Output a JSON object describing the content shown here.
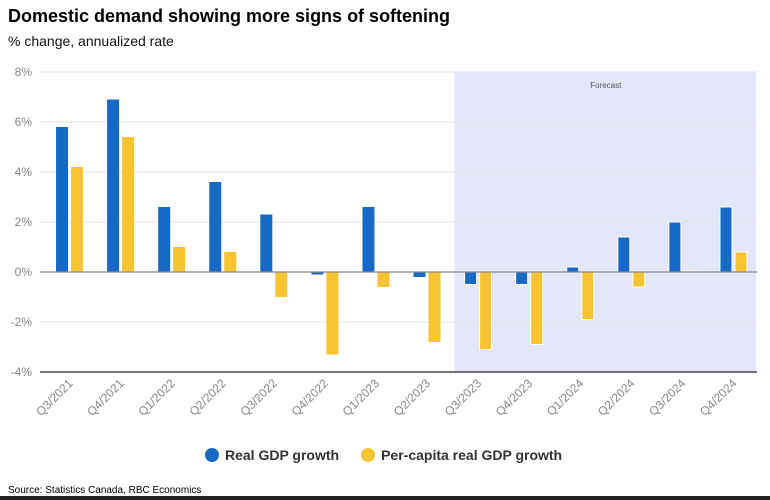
{
  "chart_data": {
    "type": "bar",
    "title": "Domestic demand showing more signs of softening",
    "subtitle": "% change, annualized rate",
    "xlabel": "",
    "ylabel": "",
    "ylim": [
      -4,
      8
    ],
    "yticks": [
      -4,
      -2,
      0,
      2,
      4,
      6,
      8
    ],
    "ytick_labels": [
      "-4%",
      "-2%",
      "0%",
      "2%",
      "4%",
      "6%",
      "8%"
    ],
    "grid": true,
    "categories": [
      "Q3/2021",
      "Q4/2021",
      "Q1/2022",
      "Q2/2022",
      "Q3/2022",
      "Q4/2022",
      "Q1/2023",
      "Q2/2023",
      "Q3/2023",
      "Q4/2023",
      "Q1/2024",
      "Q2/2024",
      "Q3/2024",
      "Q4/2024"
    ],
    "series": [
      {
        "name": "Real GDP growth",
        "color": "#1769c6",
        "values": [
          5.8,
          6.9,
          2.6,
          3.6,
          2.3,
          -0.1,
          2.6,
          -0.2,
          -0.5,
          -0.5,
          0.2,
          1.4,
          2.0,
          2.6
        ]
      },
      {
        "name": "Per-capita real GDP growth",
        "color": "#f8c431",
        "values": [
          4.2,
          5.4,
          1.0,
          0.8,
          -1.0,
          -3.3,
          -0.6,
          -2.8,
          -3.1,
          -2.9,
          -1.9,
          -0.6,
          0.05,
          0.8
        ]
      }
    ],
    "forecast": {
      "label": "Forecast",
      "start_category": "Q3/2023",
      "color": "#e4e7fa"
    },
    "legend": "bottom",
    "source": "Source: Statistics Canada, RBC Economics"
  }
}
